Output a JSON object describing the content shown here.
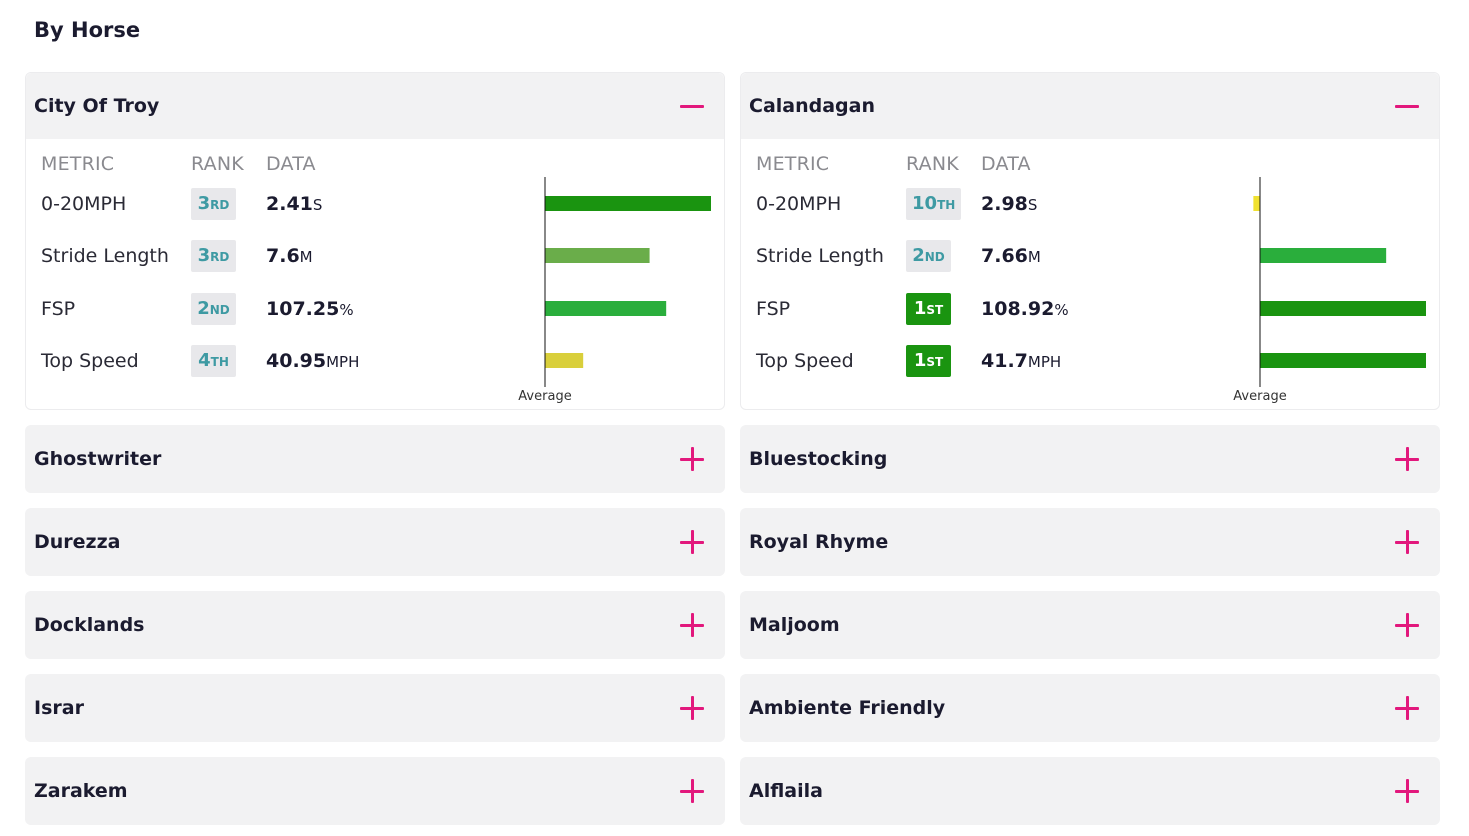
{
  "page": {
    "title": "By Horse"
  },
  "colors": {
    "accent": "#e2187c",
    "bar_dark_green": "#1a9410",
    "bar_green": "#2aae3c",
    "bar_light_green": "#6aad4a",
    "bar_yellow": "#d9cf3b",
    "bar_bright_yellow": "#f0e130",
    "rank_top_bg": "#1a9410",
    "rank_text": "#3e9aa3"
  },
  "table_headers": {
    "metric": "METRIC",
    "rank": "RANK",
    "data": "DATA"
  },
  "average_label": "Average",
  "left_column": [
    {
      "name": "City Of Troy",
      "expanded": true,
      "toggle_icon": "minus-icon",
      "metrics": [
        {
          "label": "0-20MPH",
          "rank_num": "3",
          "rank_suffix": "RD",
          "rank_top": false,
          "value": "2.41",
          "unit": "S",
          "bar_pct": 100,
          "bar_color": "#1a9410"
        },
        {
          "label": "Stride Length",
          "rank_num": "3",
          "rank_suffix": "RD",
          "rank_top": false,
          "value": "7.6",
          "unit": "M",
          "bar_pct": 63,
          "bar_color": "#6aad4a"
        },
        {
          "label": "FSP",
          "rank_num": "2",
          "rank_suffix": "ND",
          "rank_top": false,
          "value": "107.25",
          "unit": "%",
          "bar_pct": 73,
          "bar_color": "#2aae3c"
        },
        {
          "label": "Top Speed",
          "rank_num": "4",
          "rank_suffix": "TH",
          "rank_top": false,
          "value": "40.95",
          "unit": "MPH",
          "bar_pct": 23,
          "bar_color": "#d9cf3b"
        }
      ]
    },
    {
      "name": "Ghostwriter",
      "expanded": false,
      "toggle_icon": "plus-icon"
    },
    {
      "name": "Durezza",
      "expanded": false,
      "toggle_icon": "plus-icon"
    },
    {
      "name": "Docklands",
      "expanded": false,
      "toggle_icon": "plus-icon"
    },
    {
      "name": "Israr",
      "expanded": false,
      "toggle_icon": "plus-icon"
    },
    {
      "name": "Zarakem",
      "expanded": false,
      "toggle_icon": "plus-icon"
    }
  ],
  "right_column": [
    {
      "name": "Calandagan",
      "expanded": true,
      "toggle_icon": "minus-icon",
      "metrics": [
        {
          "label": "0-20MPH",
          "rank_num": "10",
          "rank_suffix": "TH",
          "rank_top": false,
          "value": "2.98",
          "unit": "S",
          "bar_pct": -4,
          "bar_color": "#f0e130"
        },
        {
          "label": "Stride Length",
          "rank_num": "2",
          "rank_suffix": "ND",
          "rank_top": false,
          "value": "7.66",
          "unit": "M",
          "bar_pct": 76,
          "bar_color": "#2aae3c"
        },
        {
          "label": "FSP",
          "rank_num": "1",
          "rank_suffix": "ST",
          "rank_top": true,
          "value": "108.92",
          "unit": "%",
          "bar_pct": 100,
          "bar_color": "#1a9410"
        },
        {
          "label": "Top Speed",
          "rank_num": "1",
          "rank_suffix": "ST",
          "rank_top": true,
          "value": "41.7",
          "unit": "MPH",
          "bar_pct": 100,
          "bar_color": "#1a9410"
        }
      ]
    },
    {
      "name": "Bluestocking",
      "expanded": false,
      "toggle_icon": "plus-icon"
    },
    {
      "name": "Royal Rhyme",
      "expanded": false,
      "toggle_icon": "plus-icon"
    },
    {
      "name": "Maljoom",
      "expanded": false,
      "toggle_icon": "plus-icon"
    },
    {
      "name": "Ambiente Friendly",
      "expanded": false,
      "toggle_icon": "plus-icon"
    },
    {
      "name": "Alflaila",
      "expanded": false,
      "toggle_icon": "plus-icon"
    }
  ]
}
